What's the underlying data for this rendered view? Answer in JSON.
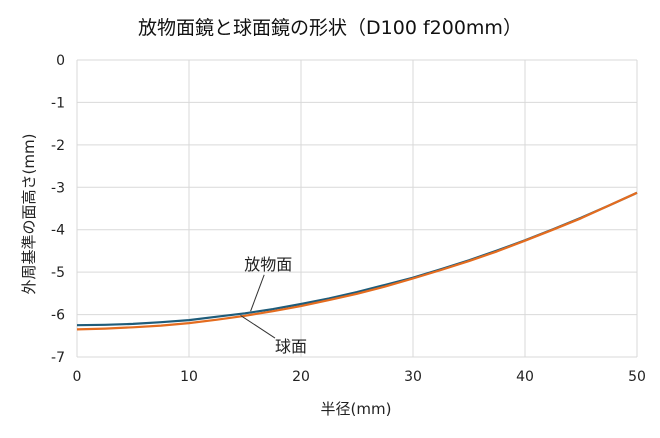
{
  "chart_data": {
    "type": "line",
    "title": "放物面鏡と球面鏡の形状（D100 f200mm）",
    "xlabel": "半径(mm)",
    "ylabel": "外周基準の面高さ(mm)",
    "xlim": [
      0,
      50
    ],
    "ylim": [
      -7,
      0
    ],
    "xticks": [
      0,
      10,
      20,
      30,
      40,
      50
    ],
    "yticks": [
      0,
      -1,
      -2,
      -3,
      -4,
      -5,
      -6,
      -7
    ],
    "grid": true,
    "legend": "none",
    "series": [
      {
        "name": "放物面",
        "color": "#1F5C7A",
        "x": [
          0,
          2.5,
          5,
          7.5,
          10,
          12.5,
          15,
          17.5,
          20,
          22.5,
          25,
          27.5,
          30,
          32.5,
          35,
          37.5,
          40,
          42.5,
          45,
          47.5,
          50
        ],
        "y": [
          -6.25,
          -6.24,
          -6.22,
          -6.18,
          -6.13,
          -6.05,
          -5.97,
          -5.87,
          -5.75,
          -5.62,
          -5.47,
          -5.3,
          -5.13,
          -4.93,
          -4.72,
          -4.49,
          -4.25,
          -3.99,
          -3.72,
          -3.43,
          -3.13
        ]
      },
      {
        "name": "球面",
        "color": "#E46C1F",
        "x": [
          0,
          2.5,
          5,
          7.5,
          10,
          12.5,
          15,
          17.5,
          20,
          22.5,
          25,
          27.5,
          30,
          32.5,
          35,
          37.5,
          40,
          42.5,
          45,
          47.5,
          50
        ],
        "y": [
          -6.35,
          -6.33,
          -6.3,
          -6.26,
          -6.2,
          -6.12,
          -6.03,
          -5.92,
          -5.8,
          -5.66,
          -5.51,
          -5.34,
          -5.15,
          -4.95,
          -4.74,
          -4.51,
          -4.26,
          -4.0,
          -3.73,
          -3.43,
          -3.13
        ]
      }
    ],
    "annotations": [
      {
        "text": "放物面",
        "x": 16,
        "y": -4.85
      },
      {
        "text": "球面",
        "x": 17.5,
        "y": -6.6
      }
    ]
  }
}
